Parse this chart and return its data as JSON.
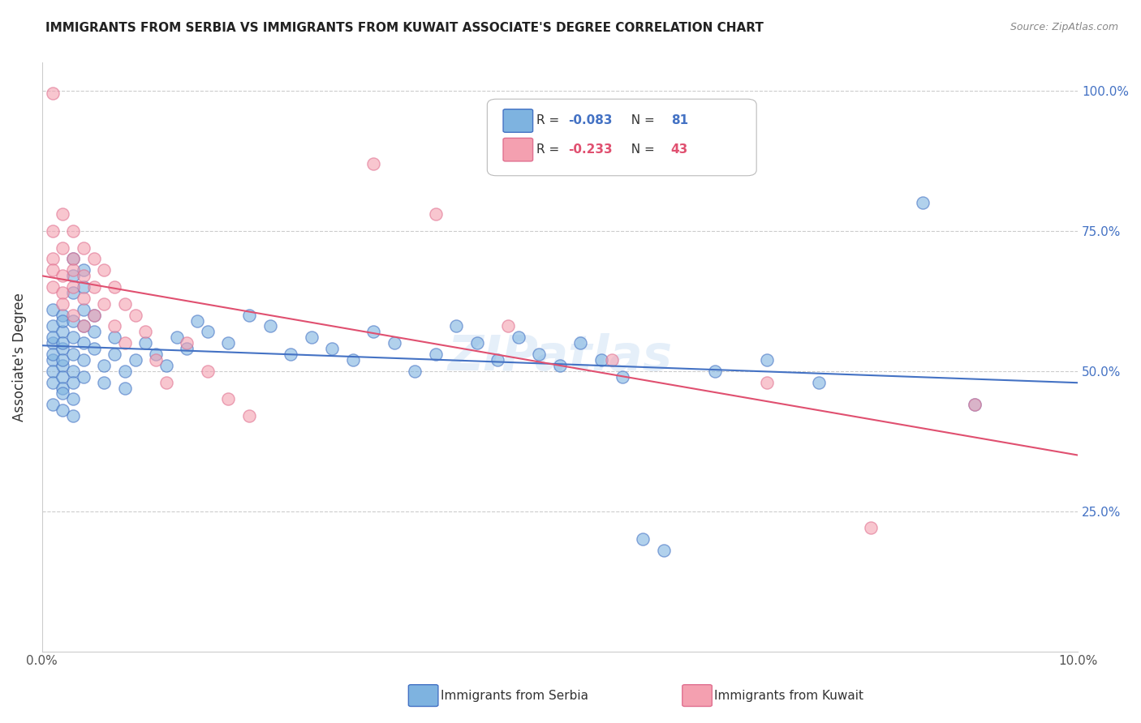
{
  "title": "IMMIGRANTS FROM SERBIA VS IMMIGRANTS FROM KUWAIT ASSOCIATE'S DEGREE CORRELATION CHART",
  "source": "Source: ZipAtlas.com",
  "ylabel": "Associate's Degree",
  "legend_labels": [
    "Immigrants from Serbia",
    "Immigrants from Kuwait"
  ],
  "r_serbia": -0.083,
  "n_serbia": 81,
  "r_kuwait": -0.233,
  "n_kuwait": 43,
  "xlim": [
    0.0,
    0.1
  ],
  "ylim": [
    0.0,
    1.05
  ],
  "color_serbia": "#7EB3E0",
  "color_kuwait": "#F4A0B0",
  "color_serbia_line": "#4472C4",
  "color_kuwait_line": "#E05070",
  "watermark": "ZIPatlas",
  "serbia_x": [
    0.001,
    0.001,
    0.001,
    0.001,
    0.001,
    0.001,
    0.001,
    0.001,
    0.001,
    0.002,
    0.002,
    0.002,
    0.002,
    0.002,
    0.002,
    0.002,
    0.002,
    0.002,
    0.002,
    0.002,
    0.003,
    0.003,
    0.003,
    0.003,
    0.003,
    0.003,
    0.003,
    0.003,
    0.003,
    0.003,
    0.004,
    0.004,
    0.004,
    0.004,
    0.004,
    0.004,
    0.004,
    0.005,
    0.005,
    0.005,
    0.006,
    0.006,
    0.007,
    0.007,
    0.008,
    0.008,
    0.009,
    0.01,
    0.011,
    0.012,
    0.013,
    0.014,
    0.015,
    0.016,
    0.018,
    0.02,
    0.022,
    0.024,
    0.026,
    0.028,
    0.03,
    0.032,
    0.034,
    0.036,
    0.038,
    0.04,
    0.042,
    0.044,
    0.046,
    0.048,
    0.05,
    0.052,
    0.054,
    0.056,
    0.058,
    0.06,
    0.065,
    0.07,
    0.075,
    0.085,
    0.09
  ],
  "serbia_y": [
    0.52,
    0.55,
    0.58,
    0.61,
    0.5,
    0.48,
    0.53,
    0.56,
    0.44,
    0.51,
    0.54,
    0.57,
    0.6,
    0.49,
    0.47,
    0.52,
    0.55,
    0.43,
    0.46,
    0.59,
    0.53,
    0.56,
    0.59,
    0.5,
    0.48,
    0.64,
    0.67,
    0.7,
    0.45,
    0.42,
    0.55,
    0.58,
    0.61,
    0.52,
    0.49,
    0.65,
    0.68,
    0.54,
    0.57,
    0.6,
    0.51,
    0.48,
    0.53,
    0.56,
    0.5,
    0.47,
    0.52,
    0.55,
    0.53,
    0.51,
    0.56,
    0.54,
    0.59,
    0.57,
    0.55,
    0.6,
    0.58,
    0.53,
    0.56,
    0.54,
    0.52,
    0.57,
    0.55,
    0.5,
    0.53,
    0.58,
    0.55,
    0.52,
    0.56,
    0.53,
    0.51,
    0.55,
    0.52,
    0.49,
    0.2,
    0.18,
    0.5,
    0.52,
    0.48,
    0.8,
    0.44
  ],
  "kuwait_x": [
    0.001,
    0.001,
    0.001,
    0.001,
    0.001,
    0.002,
    0.002,
    0.002,
    0.002,
    0.002,
    0.003,
    0.003,
    0.003,
    0.003,
    0.003,
    0.004,
    0.004,
    0.004,
    0.004,
    0.005,
    0.005,
    0.005,
    0.006,
    0.006,
    0.007,
    0.007,
    0.008,
    0.008,
    0.009,
    0.01,
    0.011,
    0.012,
    0.014,
    0.016,
    0.018,
    0.02,
    0.032,
    0.038,
    0.045,
    0.055,
    0.07,
    0.08,
    0.09
  ],
  "kuwait_y": [
    0.995,
    0.7,
    0.75,
    0.65,
    0.68,
    0.72,
    0.67,
    0.64,
    0.78,
    0.62,
    0.7,
    0.75,
    0.65,
    0.68,
    0.6,
    0.72,
    0.67,
    0.63,
    0.58,
    0.65,
    0.7,
    0.6,
    0.68,
    0.62,
    0.65,
    0.58,
    0.62,
    0.55,
    0.6,
    0.57,
    0.52,
    0.48,
    0.55,
    0.5,
    0.45,
    0.42,
    0.87,
    0.78,
    0.58,
    0.52,
    0.48,
    0.22,
    0.44
  ]
}
